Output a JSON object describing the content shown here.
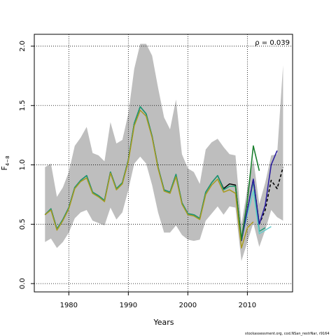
{
  "chart_data": {
    "type": "line",
    "xlabel": "Years",
    "ylabel_base": "F",
    "ylabel_sub": "4−8",
    "annotation": "ρ = 0.039",
    "footer": "stockassessment.org, cod.NSan_restrNar, r9164",
    "xlim": [
      1974.2,
      2017.6
    ],
    "ylim": [
      -0.07,
      2.1
    ],
    "x_ticks": [
      1980,
      1990,
      2000,
      2010
    ],
    "y_ticks": [
      0.0,
      0.5,
      1.0,
      1.5,
      2.0
    ],
    "y_tick_labels": [
      "0.0",
      "0.5",
      "1.0",
      "1.5",
      "2.0"
    ],
    "grid": "dotted",
    "confidence_band": {
      "color": "#bebebe",
      "x": [
        1976,
        1977,
        1978,
        1979,
        1980,
        1981,
        1982,
        1983,
        1984,
        1985,
        1986,
        1987,
        1988,
        1989,
        1990,
        1991,
        1992,
        1993,
        1994,
        1995,
        1996,
        1997,
        1998,
        1999,
        2000,
        2001,
        2002,
        2003,
        2004,
        2005,
        2006,
        2007,
        2008,
        2009,
        2010,
        2011,
        2012,
        2013,
        2014,
        2015,
        2016
      ],
      "upper": [
        0.98,
        1.01,
        0.73,
        0.81,
        0.94,
        1.16,
        1.23,
        1.32,
        1.1,
        1.08,
        1.03,
        1.36,
        1.18,
        1.21,
        1.43,
        1.81,
        2.02,
        2.02,
        1.92,
        1.65,
        1.4,
        1.3,
        1.55,
        1.09,
        0.97,
        0.94,
        0.84,
        1.13,
        1.19,
        1.22,
        1.15,
        1.09,
        1.08,
        0.5,
        0.8,
        1.05,
        0.67,
        0.85,
        1.08,
        1.09,
        1.84
      ],
      "lower": [
        0.35,
        0.38,
        0.3,
        0.35,
        0.43,
        0.55,
        0.6,
        0.62,
        0.53,
        0.51,
        0.49,
        0.64,
        0.54,
        0.6,
        0.79,
        1.01,
        1.07,
        1.01,
        0.83,
        0.6,
        0.43,
        0.43,
        0.49,
        0.41,
        0.37,
        0.36,
        0.37,
        0.53,
        0.59,
        0.65,
        0.58,
        0.65,
        0.64,
        0.19,
        0.35,
        0.51,
        0.31,
        0.45,
        0.62,
        0.56,
        0.53
      ]
    },
    "series": [
      {
        "color": "#000000",
        "dash": "none",
        "width": 1.5,
        "x": [
          1976,
          1977,
          1978,
          1979,
          1980,
          1981,
          1982,
          1983,
          1984,
          1985,
          1986,
          1987,
          1988,
          1989,
          1990,
          1991,
          1992,
          1993,
          1994,
          1995,
          1996,
          1997,
          1998,
          1999,
          2000,
          2001,
          2002,
          2003,
          2004,
          2005,
          2006,
          2007,
          2008,
          2009
        ],
        "y": [
          0.58,
          0.63,
          0.46,
          0.54,
          0.64,
          0.81,
          0.87,
          0.91,
          0.77,
          0.74,
          0.7,
          0.94,
          0.8,
          0.85,
          1.04,
          1.35,
          1.49,
          1.43,
          1.24,
          0.98,
          0.79,
          0.77,
          0.92,
          0.68,
          0.59,
          0.58,
          0.55,
          0.77,
          0.85,
          0.91,
          0.8,
          0.84,
          0.83,
          0.36
        ]
      },
      {
        "color": "#000000",
        "dash": "4,3",
        "width": 1.6,
        "x": [
          2009,
          2010,
          2011,
          2012,
          2013,
          2014,
          2015,
          2016
        ],
        "y": [
          0.36,
          0.62,
          0.88,
          0.5,
          0.62,
          0.87,
          0.8,
          0.98
        ]
      },
      {
        "color": "#1b9e77",
        "dash": "none",
        "width": 1.5,
        "x": [
          1976,
          1977,
          1978,
          1979,
          1980,
          1981,
          1982,
          1983,
          1984,
          1985,
          1986,
          1987,
          1988,
          1989,
          1990,
          1991,
          1992,
          1993,
          1994,
          1995,
          1996,
          1997,
          1998,
          1999,
          2000,
          2001,
          2002,
          2003,
          2004,
          2005,
          2006,
          2007,
          2008,
          2009,
          2010,
          2011,
          2012,
          2013
        ],
        "y": [
          0.58,
          0.63,
          0.46,
          0.54,
          0.64,
          0.81,
          0.87,
          0.91,
          0.77,
          0.74,
          0.7,
          0.94,
          0.8,
          0.85,
          1.04,
          1.35,
          1.49,
          1.43,
          1.24,
          0.98,
          0.79,
          0.77,
          0.92,
          0.68,
          0.59,
          0.58,
          0.55,
          0.77,
          0.85,
          0.91,
          0.79,
          0.82,
          0.82,
          0.37,
          0.62,
          0.86,
          0.44,
          0.47
        ]
      },
      {
        "color": "#66cdcd",
        "dash": "none",
        "width": 1.5,
        "x": [
          2009,
          2010,
          2011,
          2012,
          2013,
          2014
        ],
        "y": [
          0.37,
          0.58,
          0.78,
          0.42,
          0.45,
          0.48
        ]
      },
      {
        "color": "#2c1fa0",
        "dash": "none",
        "width": 1.6,
        "x": [
          2009,
          2010,
          2011,
          2012,
          2013,
          2014,
          2015
        ],
        "y": [
          0.36,
          0.62,
          0.88,
          0.5,
          0.66,
          1.0,
          1.12
        ]
      },
      {
        "color": "#1a7f2e",
        "dash": "none",
        "width": 1.6,
        "x": [
          2008,
          2009,
          2010,
          2011,
          2012
        ],
        "y": [
          0.82,
          0.37,
          0.7,
          1.16,
          0.95
        ]
      },
      {
        "color": "#a89a1f",
        "dash": "none",
        "width": 1.5,
        "x": [
          1976,
          1977,
          1978,
          1979,
          1980,
          1981,
          1982,
          1983,
          1984,
          1985,
          1986,
          1987,
          1988,
          1989,
          1990,
          1991,
          1992,
          1993,
          1994,
          1995,
          1996,
          1997,
          1998,
          1999,
          2000,
          2001,
          2002,
          2003,
          2004,
          2005,
          2006,
          2007,
          2008,
          2009,
          2010,
          2011
        ],
        "y": [
          0.58,
          0.62,
          0.45,
          0.53,
          0.63,
          0.8,
          0.86,
          0.89,
          0.76,
          0.73,
          0.69,
          0.93,
          0.79,
          0.84,
          1.03,
          1.33,
          1.46,
          1.41,
          1.23,
          0.97,
          0.78,
          0.76,
          0.9,
          0.67,
          0.58,
          0.57,
          0.54,
          0.75,
          0.83,
          0.88,
          0.77,
          0.79,
          0.76,
          0.3,
          0.47,
          0.52
        ]
      }
    ]
  }
}
